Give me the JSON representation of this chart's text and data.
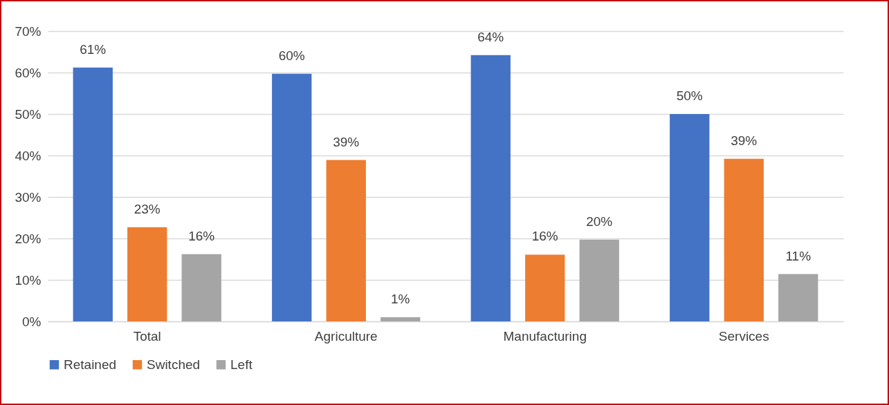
{
  "chart_data": {
    "type": "bar",
    "categories": [
      "Total",
      "Agriculture",
      "Manufacturing",
      "Services"
    ],
    "series": [
      {
        "name": "Retained",
        "color": "#4472c4",
        "values": [
          61.2,
          59.7,
          64.2,
          50.0
        ],
        "value_labels": [
          "61%",
          "60%",
          "64%",
          "50%"
        ]
      },
      {
        "name": "Switched",
        "color": "#ed7d31",
        "values": [
          22.7,
          38.9,
          16.1,
          39.2
        ],
        "value_labels": [
          "23%",
          "39%",
          "16%",
          "39%"
        ]
      },
      {
        "name": "Left",
        "color": "#a5a5a5",
        "values": [
          16.2,
          1.0,
          19.7,
          11.4
        ],
        "value_labels": [
          "16%",
          "1%",
          "20%",
          "11%"
        ]
      }
    ],
    "ylim": [
      0,
      70
    ],
    "yticks": [
      {
        "value": 0,
        "label": "0%"
      },
      {
        "value": 10,
        "label": "10%"
      },
      {
        "value": 20,
        "label": "20%"
      },
      {
        "value": 30,
        "label": "30%"
      },
      {
        "value": 40,
        "label": "40%"
      },
      {
        "value": 50,
        "label": "50%"
      },
      {
        "value": 60,
        "label": "60%"
      },
      {
        "value": 70,
        "label": "70%"
      }
    ],
    "grid": "y",
    "legend": "bottom"
  }
}
